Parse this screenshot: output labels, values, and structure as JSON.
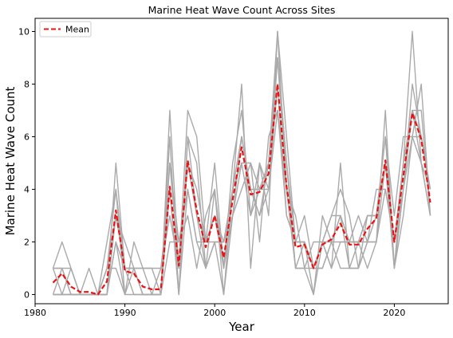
{
  "chart_data": {
    "type": "line",
    "title": "Marine Heat Wave Count Across Sites",
    "xlabel": "Year",
    "ylabel": "Marine Heat Wave Count",
    "xlim": [
      1980,
      2026
    ],
    "ylim": [
      -0.35,
      10.5
    ],
    "xticks": [
      1980,
      1990,
      2000,
      2010,
      2020
    ],
    "yticks": [
      0,
      2,
      4,
      6,
      8,
      10
    ],
    "grid": false,
    "legend_position": "top-left",
    "x": [
      1982,
      1983,
      1984,
      1985,
      1986,
      1987,
      1988,
      1989,
      1990,
      1991,
      1992,
      1993,
      1994,
      1995,
      1996,
      1997,
      1998,
      1999,
      2000,
      2001,
      2002,
      2003,
      2004,
      2005,
      2006,
      2007,
      2008,
      2009,
      2010,
      2011,
      2012,
      2013,
      2014,
      2015,
      2016,
      2017,
      2018,
      2019,
      2020,
      2021,
      2022,
      2023,
      2024
    ],
    "mean_series": {
      "name": "Mean",
      "color": "#ee1111",
      "values": [
        0.45,
        0.8,
        0.3,
        0.1,
        0.1,
        0.0,
        0.5,
        3.2,
        0.9,
        0.8,
        0.3,
        0.2,
        0.2,
        4.1,
        1.1,
        5.1,
        3.2,
        1.8,
        3.0,
        1.4,
        3.6,
        5.6,
        3.8,
        3.9,
        4.6,
        8.0,
        4.1,
        1.8,
        1.9,
        1.0,
        1.9,
        2.1,
        2.7,
        1.9,
        1.9,
        2.5,
        2.9,
        5.1,
        2.0,
        4.5,
        6.9,
        5.9,
        3.5
      ]
    },
    "site_series_color": "#aaaaaa",
    "site_series": [
      {
        "values": [
          1,
          0,
          0,
          0,
          0,
          0,
          0,
          5,
          1,
          1,
          0,
          0,
          0,
          6,
          0,
          6,
          5,
          1,
          2,
          0,
          4,
          8,
          1,
          5,
          3,
          10,
          6,
          2,
          2,
          0,
          2,
          1,
          5,
          1,
          2,
          3,
          3,
          6,
          1,
          5,
          10,
          5,
          3
        ]
      },
      {
        "values": [
          1,
          2,
          1,
          0,
          1,
          0,
          1,
          4,
          0,
          2,
          1,
          1,
          0,
          7,
          1,
          7,
          6,
          2,
          5,
          1,
          5,
          7,
          3,
          4,
          5,
          9,
          5,
          1,
          1,
          0,
          3,
          2,
          3,
          1,
          1,
          2,
          2,
          7,
          1,
          4,
          8,
          6,
          4
        ]
      },
      {
        "values": [
          0,
          1,
          0,
          0,
          0,
          0,
          0,
          2,
          0,
          0,
          0,
          0,
          1,
          3,
          1,
          5,
          3,
          2,
          3,
          1,
          3,
          6,
          4,
          3,
          4,
          8,
          3,
          2,
          2,
          1,
          1,
          2,
          2,
          2,
          2,
          3,
          3,
          5,
          2,
          5,
          7,
          7,
          3
        ]
      },
      {
        "values": [
          0,
          0,
          0,
          0,
          0,
          0,
          1,
          3,
          2,
          1,
          0,
          0,
          0,
          4,
          0,
          4,
          2,
          1,
          2,
          2,
          3,
          4,
          5,
          2,
          6,
          7,
          4,
          3,
          1,
          1,
          2,
          3,
          4,
          3,
          1,
          2,
          4,
          4,
          2,
          4,
          6,
          5,
          4
        ]
      },
      {
        "values": [
          1,
          1,
          0,
          0,
          0,
          0,
          0,
          2,
          1,
          1,
          1,
          0,
          0,
          2,
          2,
          3,
          1,
          3,
          4,
          1,
          4,
          5,
          3,
          5,
          4,
          9,
          4,
          1,
          2,
          1,
          2,
          2,
          1,
          1,
          1,
          3,
          3,
          6,
          3,
          6,
          6,
          8,
          3
        ]
      },
      {
        "values": [
          0,
          0,
          0,
          0,
          0,
          0,
          2,
          4,
          1,
          0,
          0,
          0,
          0,
          5,
          1,
          5,
          4,
          2,
          3,
          2,
          4,
          6,
          4,
          4,
          5,
          9,
          5,
          2,
          3,
          1,
          2,
          3,
          3,
          2,
          2,
          2,
          3,
          5,
          1,
          4,
          7,
          6,
          4
        ]
      },
      {
        "values": [
          1,
          1,
          1,
          0,
          0,
          0,
          0,
          3,
          1,
          1,
          1,
          1,
          1,
          4,
          0,
          6,
          3,
          1,
          4,
          0,
          3,
          5,
          5,
          4,
          4,
          7,
          3,
          2,
          2,
          1,
          1,
          2,
          3,
          2,
          3,
          2,
          2,
          4,
          2,
          5,
          7,
          5,
          3
        ]
      },
      {
        "values": [
          0,
          0,
          1,
          0,
          0,
          0,
          1,
          1,
          0,
          1,
          0,
          0,
          0,
          5,
          2,
          4,
          2,
          2,
          2,
          2,
          4,
          6,
          4,
          3,
          5,
          10,
          4,
          1,
          1,
          2,
          2,
          1,
          2,
          2,
          2,
          1,
          2,
          5,
          1,
          3,
          6,
          6,
          4
        ]
      }
    ]
  }
}
